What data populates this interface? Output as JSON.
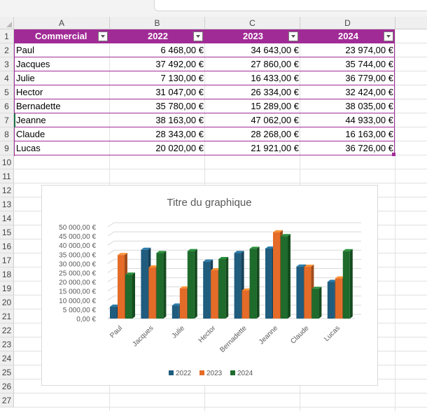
{
  "columns": [
    "A",
    "B",
    "C",
    "D"
  ],
  "rows": [
    "1",
    "2",
    "3",
    "4",
    "5",
    "6",
    "7",
    "8",
    "9",
    "10",
    "11",
    "12",
    "13",
    "14",
    "15",
    "16",
    "17",
    "18",
    "19",
    "20",
    "21",
    "22",
    "23",
    "24",
    "25",
    "26",
    "27"
  ],
  "table": {
    "headers": [
      "Commercial",
      "2022",
      "2023",
      "2024"
    ],
    "rows": [
      {
        "name": "Paul",
        "v2022": "6 468,00 €",
        "v2023": "34 643,00 €",
        "v2024": "23 974,00 €"
      },
      {
        "name": "Jacques",
        "v2022": "37 492,00 €",
        "v2023": "27 860,00 €",
        "v2024": "35 744,00 €"
      },
      {
        "name": "Julie",
        "v2022": "7 130,00 €",
        "v2023": "16 433,00 €",
        "v2024": "36 779,00 €"
      },
      {
        "name": "Hector",
        "v2022": "31 047,00 €",
        "v2023": "26 334,00 €",
        "v2024": "32 424,00 €"
      },
      {
        "name": "Bernadette",
        "v2022": "35 780,00 €",
        "v2023": "15 289,00 €",
        "v2024": "38 035,00 €"
      },
      {
        "name": "Jeanne",
        "v2022": "38 163,00 €",
        "v2023": "47 062,00 €",
        "v2024": "44 933,00 €"
      },
      {
        "name": "Claude",
        "v2022": "28 343,00 €",
        "v2023": "28 268,00 €",
        "v2024": "16 163,00 €"
      },
      {
        "name": "Lucas",
        "v2022": "20 020,00 €",
        "v2023": "21 921,00 €",
        "v2024": "36 726,00 €"
      }
    ]
  },
  "chart_data": {
    "type": "bar",
    "title": "Titre du graphique",
    "categories": [
      "Paul",
      "Jacques",
      "Julie",
      "Hector",
      "Bernadette",
      "Jeanne",
      "Claude",
      "Lucas"
    ],
    "series": [
      {
        "name": "2022",
        "color": "#1f5c7e",
        "values": [
          6468,
          37492,
          7130,
          31047,
          35780,
          38163,
          28343,
          20020
        ]
      },
      {
        "name": "2023",
        "color": "#e46c28",
        "values": [
          34643,
          27860,
          16433,
          26334,
          15289,
          47062,
          28268,
          21921
        ]
      },
      {
        "name": "2024",
        "color": "#1e6b2c",
        "values": [
          23974,
          35744,
          36779,
          32424,
          38035,
          44933,
          16163,
          36726
        ]
      }
    ],
    "ylim": [
      0,
      50000
    ],
    "ytick_labels": [
      "0,00 €",
      "5 000,00 €",
      "10 000,00 €",
      "15 000,00 €",
      "20 000,00 €",
      "25 000,00 €",
      "30 000,00 €",
      "35 000,00 €",
      "40 000,00 €",
      "45 000,00 €",
      "50 000,00 €"
    ],
    "grid": true,
    "legend": "bottom"
  }
}
